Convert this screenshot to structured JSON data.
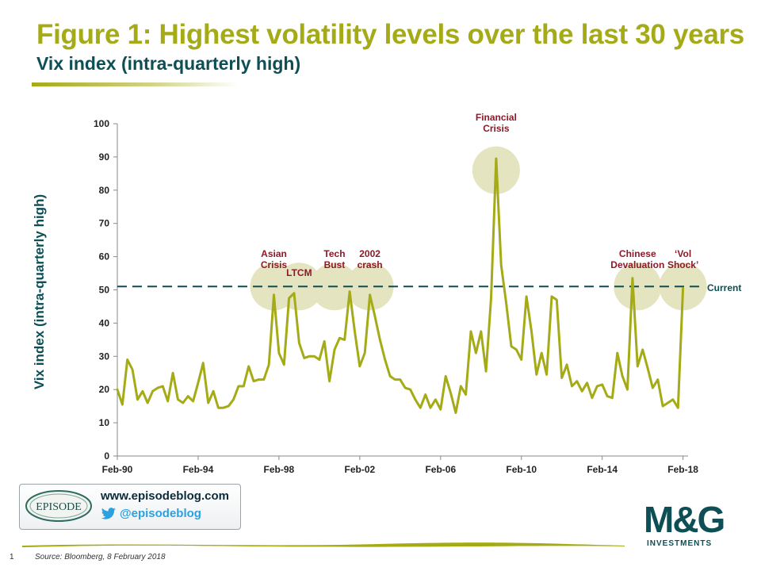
{
  "header": {
    "title": "Figure 1: Highest volatility levels over the last 30 years",
    "subtitle": "Vix index (intra-quarterly high)"
  },
  "chart_data": {
    "type": "line",
    "ylabel": "Vix index (intra-quarterly high)",
    "xlabel": "",
    "ylim": [
      0,
      100
    ],
    "yticks": [
      0,
      10,
      20,
      30,
      40,
      50,
      60,
      70,
      80,
      90,
      100
    ],
    "xlim": [
      1990.0,
      2018.25
    ],
    "xtick_labels": [
      "Feb-90",
      "Feb-94",
      "Feb-98",
      "Feb-02",
      "Feb-06",
      "Feb-10",
      "Feb-14",
      "Feb-18"
    ],
    "xtick_years": [
      1990,
      1994,
      1998,
      2002,
      2006,
      2010,
      2014,
      2018
    ],
    "series": [
      {
        "color": "#a5ab17",
        "x": [
          1990.0,
          1990.25,
          1990.5,
          1990.75,
          1991.0,
          1991.25,
          1991.5,
          1991.75,
          1992.0,
          1992.25,
          1992.5,
          1992.75,
          1993.0,
          1993.25,
          1993.5,
          1993.75,
          1994.0,
          1994.25,
          1994.5,
          1994.75,
          1995.0,
          1995.25,
          1995.5,
          1995.75,
          1996.0,
          1996.25,
          1996.5,
          1996.75,
          1997.0,
          1997.25,
          1997.5,
          1997.75,
          1998.0,
          1998.25,
          1998.5,
          1998.75,
          1999.0,
          1999.25,
          1999.5,
          1999.75,
          2000.0,
          2000.25,
          2000.5,
          2000.75,
          2001.0,
          2001.25,
          2001.5,
          2001.75,
          2002.0,
          2002.25,
          2002.5,
          2002.75,
          2003.0,
          2003.25,
          2003.5,
          2003.75,
          2004.0,
          2004.25,
          2004.5,
          2004.75,
          2005.0,
          2005.25,
          2005.5,
          2005.75,
          2006.0,
          2006.25,
          2006.5,
          2006.75,
          2007.0,
          2007.25,
          2007.5,
          2007.75,
          2008.0,
          2008.25,
          2008.5,
          2008.75,
          2009.0,
          2009.25,
          2009.5,
          2009.75,
          2010.0,
          2010.25,
          2010.5,
          2010.75,
          2011.0,
          2011.25,
          2011.5,
          2011.75,
          2012.0,
          2012.25,
          2012.5,
          2012.75,
          2013.0,
          2013.25,
          2013.5,
          2013.75,
          2014.0,
          2014.25,
          2014.5,
          2014.75,
          2015.0,
          2015.25,
          2015.5,
          2015.75,
          2016.0,
          2016.25,
          2016.5,
          2016.75,
          2017.0,
          2017.25,
          2017.5,
          2017.75,
          2018.0
        ],
        "values": [
          20,
          15.5,
          29,
          26,
          17,
          19.5,
          16,
          19.5,
          20.5,
          21,
          16.5,
          25,
          17,
          16,
          18,
          16.5,
          22,
          28,
          16,
          19.5,
          14.5,
          14.5,
          15,
          17,
          21,
          21,
          27,
          22.5,
          23,
          23,
          27.5,
          48.5,
          31,
          27.5,
          47.5,
          49,
          34,
          29.5,
          30,
          30,
          29,
          34.5,
          22.5,
          32,
          35.5,
          35,
          49.5,
          37.5,
          27,
          31,
          48.5,
          42,
          35,
          29,
          24,
          23,
          23,
          20.5,
          20,
          17,
          14.5,
          18.5,
          14.5,
          17,
          14,
          24,
          19,
          13,
          21,
          18.5,
          37.5,
          31,
          37.5,
          25.5,
          47.5,
          89.5,
          57.5,
          46,
          33,
          32,
          29,
          48,
          37.5,
          24.5,
          31,
          24.5,
          48,
          47,
          23.5,
          27.5,
          21,
          22.5,
          19.5,
          22,
          17.5,
          21,
          21.5,
          18,
          17.5,
          31,
          24,
          20,
          53.5,
          27,
          32,
          26.5,
          20.5,
          23,
          15,
          16,
          17,
          14.5,
          50.5
        ]
      }
    ],
    "reference_line": {
      "value": 51,
      "label": "Current",
      "color": "#0e4e55",
      "style": "dashed"
    },
    "annotations": [
      {
        "label": "Asian\nCrisis",
        "x": 1997.75,
        "y": 51
      },
      {
        "label": "LTCM",
        "x": 1999.0,
        "y": 51
      },
      {
        "label": "Tech\nBust",
        "x": 2000.75,
        "y": 51
      },
      {
        "label": "2002\ncrash",
        "x": 2002.5,
        "y": 51
      },
      {
        "label": "Financial\nCrisis",
        "x": 2008.75,
        "y": 86
      },
      {
        "label": "Chinese\nDevaluation",
        "x": 2015.75,
        "y": 51
      },
      {
        "label": "‘Vol\nShock’",
        "x": 2018.0,
        "y": 51
      }
    ],
    "highlight_color": "#e4e4c0",
    "grid": false
  },
  "promo": {
    "logo_text": "EPISODE",
    "website": "www.episodeblog.com",
    "twitter_handle": "@episodeblog",
    "twitter_icon": "twitter-bird-icon"
  },
  "brand": {
    "name": "M&G",
    "sub": "INVESTMENTS"
  },
  "footer": {
    "page_number": "1",
    "source": "Source: Bloomberg, 8 February 2018"
  }
}
